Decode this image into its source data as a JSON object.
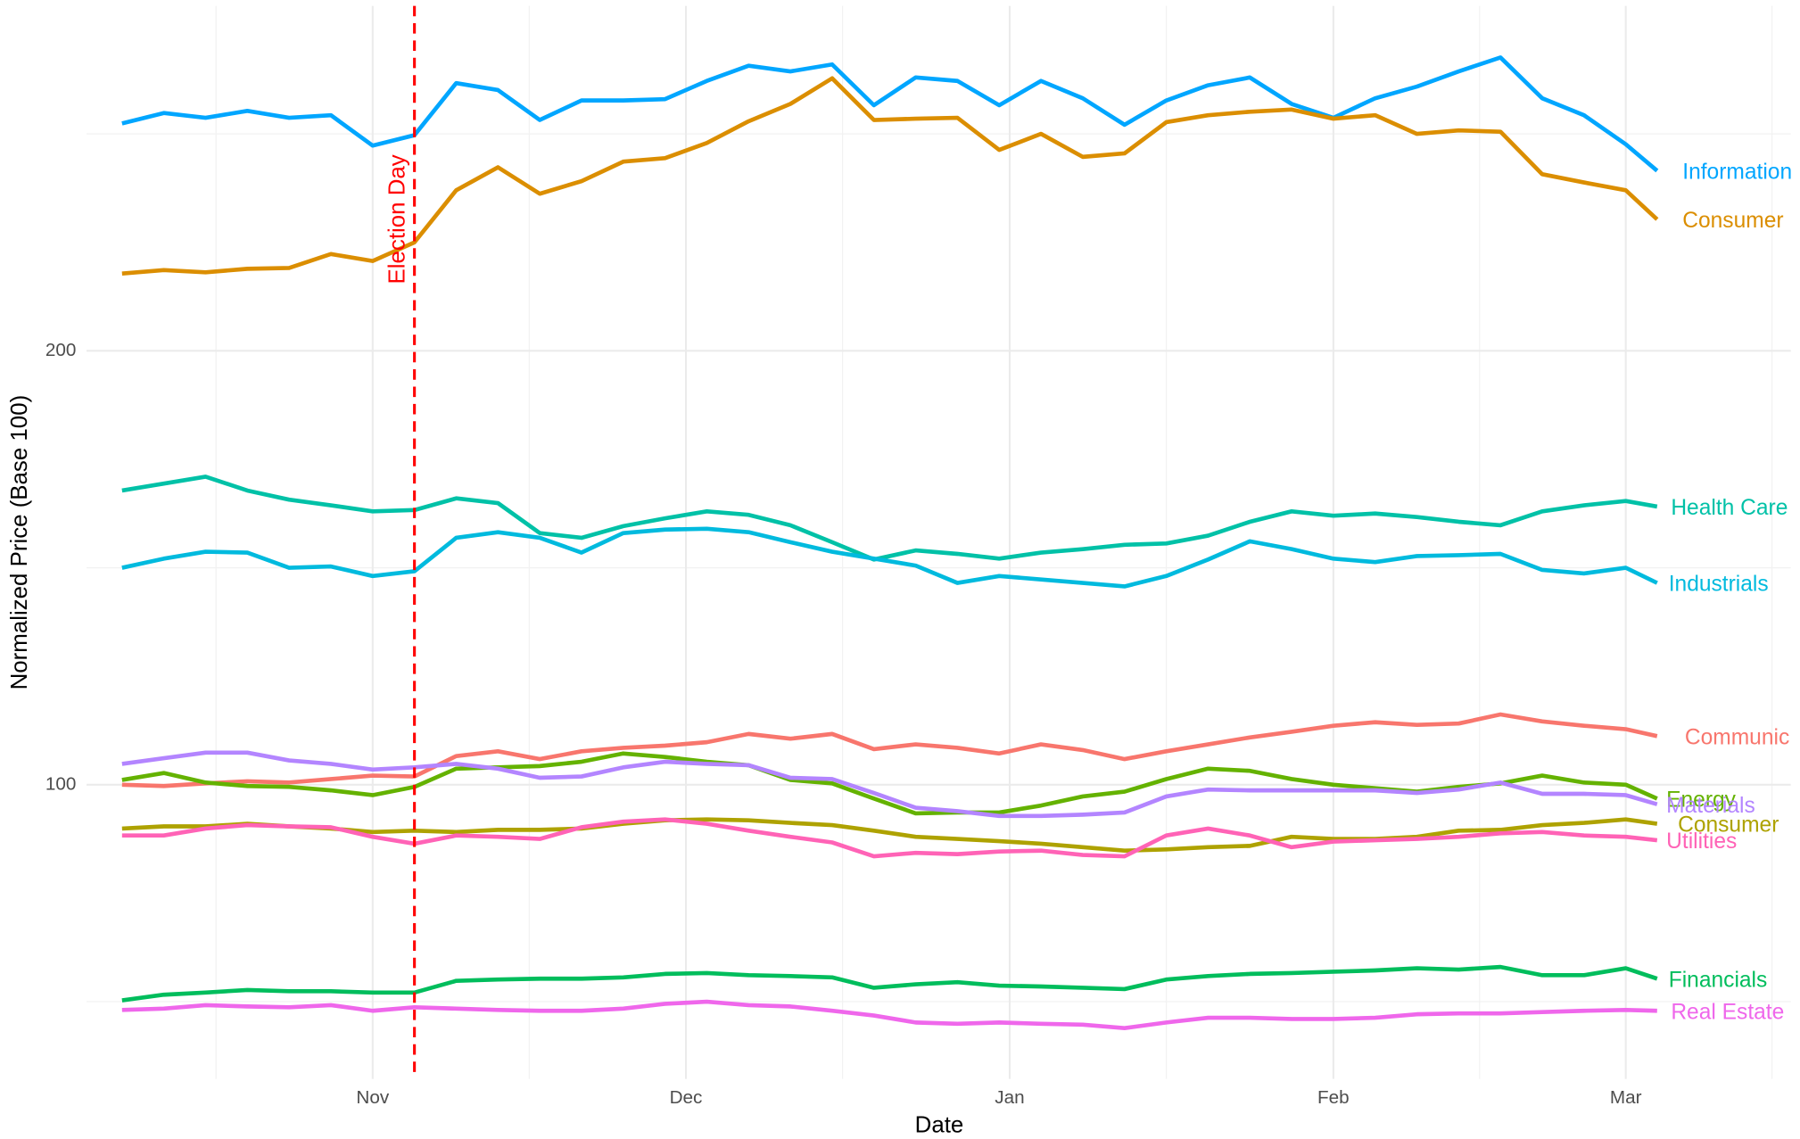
{
  "chart_data": {
    "type": "line",
    "x_label": "Date",
    "y_label": "Normalized Price (Base 100)",
    "x": [
      0,
      4,
      8,
      12,
      16,
      20,
      24,
      28,
      32,
      36,
      40,
      44,
      48,
      52,
      56,
      60,
      64,
      68,
      72,
      76,
      80,
      84,
      88,
      92,
      96,
      100,
      104,
      108,
      112,
      116,
      120,
      124,
      128,
      132,
      136,
      140,
      144,
      147
    ],
    "xlim": [
      -3.4,
      159.8
    ],
    "xticks": [
      {
        "value": 24,
        "label": "Nov"
      },
      {
        "value": 54,
        "label": "Dec"
      },
      {
        "value": 85,
        "label": "Jan"
      },
      {
        "value": 116,
        "label": "Feb"
      },
      {
        "value": 144,
        "label": "Mar"
      }
    ],
    "minor_xticks": [
      9,
      39,
      69,
      100,
      130,
      158
    ],
    "ylim": [
      32.2,
      279.5
    ],
    "yticks": [
      100,
      200
    ],
    "minor_yticks": [
      50,
      150,
      250
    ],
    "grid": true,
    "annotations": [
      {
        "x": 28,
        "label": "Election Day",
        "color": "#ff0000"
      }
    ],
    "series": [
      {
        "name": "Information",
        "color": "#00A6FF",
        "values": [
          252.4,
          254.8,
          253.7,
          255.3,
          253.7,
          254.3,
          247.3,
          249.7,
          261.7,
          260.1,
          253.2,
          257.7,
          257.7,
          258,
          262.2,
          265.7,
          264.4,
          266,
          256.6,
          263,
          262.2,
          256.6,
          262.2,
          258.2,
          252.1,
          257.7,
          261.2,
          263,
          256.9,
          253.7,
          258.2,
          260.9,
          264.4,
          267.6,
          258.2,
          254.3,
          247.6,
          241.5
        ]
      },
      {
        "name": "Consumer",
        "color": "#DB8E00",
        "values": [
          217.8,
          218.6,
          218.1,
          218.9,
          219.1,
          222.3,
          220.7,
          225,
          237,
          242.3,
          236.2,
          239.1,
          243.6,
          244.4,
          247.9,
          252.9,
          256.9,
          262.8,
          253.2,
          253.5,
          253.7,
          246.3,
          250,
          244.7,
          245.5,
          252.7,
          254.3,
          255.1,
          255.6,
          253.5,
          254.3,
          250,
          250.8,
          250.5,
          240.7,
          238.8,
          237,
          230.3
        ]
      },
      {
        "name": "Health Care",
        "color": "#00C1A7",
        "values": [
          167.8,
          169.4,
          171,
          167.8,
          165.7,
          164.4,
          163,
          163.3,
          166,
          164.9,
          158,
          156.9,
          159.6,
          161.4,
          163,
          162.2,
          159.8,
          155.9,
          151.9,
          154,
          153.2,
          152.1,
          153.5,
          154.3,
          155.3,
          155.6,
          157.4,
          160.6,
          163,
          162,
          162.5,
          161.7,
          160.6,
          159.8,
          163,
          164.4,
          165.4,
          164.1
        ]
      },
      {
        "name": "Industrials",
        "color": "#00BADE",
        "values": [
          150,
          152.1,
          153.7,
          153.5,
          150,
          150.3,
          148.1,
          149.2,
          156.9,
          158.2,
          156.9,
          153.5,
          158,
          158.8,
          159,
          158.2,
          155.9,
          153.7,
          152.1,
          150.5,
          146.5,
          148.1,
          147.3,
          146.5,
          145.7,
          148.1,
          151.9,
          156.1,
          154.3,
          152.1,
          151.3,
          152.7,
          152.9,
          153.2,
          149.5,
          148.7,
          150,
          146.5
        ]
      },
      {
        "name": "Communic",
        "color": "#F8766D",
        "values": [
          100,
          99.7,
          100.3,
          100.8,
          100.5,
          101.3,
          102.1,
          101.9,
          106.6,
          107.7,
          105.9,
          107.7,
          108.5,
          109,
          109.8,
          111.7,
          110.6,
          111.7,
          108.2,
          109.3,
          108.5,
          107.2,
          109.3,
          108,
          105.9,
          107.7,
          109.3,
          110.9,
          112.2,
          113.6,
          114.4,
          113.8,
          114.1,
          116.2,
          114.6,
          113.6,
          112.8,
          111.2
        ]
      },
      {
        "name": "Energy",
        "color": "#64B200",
        "values": [
          101.1,
          102.7,
          100.5,
          99.7,
          99.5,
          98.7,
          97.6,
          99.5,
          103.7,
          104,
          104.3,
          105.3,
          107.2,
          106.4,
          105.3,
          104.5,
          101.1,
          100.3,
          96.8,
          93.4,
          93.6,
          93.6,
          95.2,
          97.3,
          98.4,
          101.3,
          103.7,
          103.2,
          101.3,
          100,
          99.2,
          98.4,
          99.5,
          100.3,
          102.1,
          100.5,
          100,
          96.8
        ]
      },
      {
        "name": "Materials",
        "color": "#B385FF",
        "values": [
          104.8,
          106.1,
          107.4,
          107.4,
          105.6,
          104.8,
          103.5,
          104,
          104.8,
          103.7,
          101.6,
          101.9,
          104,
          105.3,
          104.8,
          104.5,
          101.6,
          101.3,
          98.1,
          94.7,
          93.9,
          92.8,
          92.8,
          93.1,
          93.6,
          97.3,
          98.9,
          98.7,
          98.7,
          98.7,
          98.7,
          98.1,
          98.9,
          100.5,
          97.9,
          97.9,
          97.6,
          95.5
        ]
      },
      {
        "name": "Consumer",
        "color": "#AEA200",
        "values": [
          89.9,
          90.4,
          90.4,
          91,
          90.4,
          89.9,
          89.1,
          89.4,
          89.1,
          89.6,
          89.6,
          89.9,
          91,
          91.8,
          92,
          91.8,
          91.2,
          90.7,
          89.4,
          88,
          87.5,
          87,
          86.4,
          85.6,
          84.8,
          85.1,
          85.6,
          85.9,
          88,
          87.5,
          87.5,
          88,
          89.4,
          89.6,
          90.7,
          91.2,
          92,
          91
        ]
      },
      {
        "name": "Utilities",
        "color": "#FF63B6",
        "values": [
          88.3,
          88.3,
          89.9,
          90.7,
          90.4,
          90.2,
          88,
          86.4,
          88.3,
          88,
          87.5,
          90.2,
          91.5,
          92,
          91,
          89.4,
          88,
          86.7,
          83.5,
          84.3,
          84,
          84.6,
          84.8,
          83.8,
          83.5,
          88.3,
          89.9,
          88.3,
          85.6,
          86.9,
          87.2,
          87.5,
          88,
          88.8,
          89.1,
          88.3,
          88,
          87.2
        ]
      },
      {
        "name": "Financials",
        "color": "#00BD5C",
        "values": [
          50.3,
          51.6,
          52.1,
          52.7,
          52.4,
          52.4,
          52.1,
          52.1,
          54.8,
          55.1,
          55.3,
          55.3,
          55.6,
          56.4,
          56.6,
          56.1,
          55.9,
          55.6,
          53.2,
          54,
          54.5,
          53.7,
          53.5,
          53.2,
          52.9,
          55.1,
          55.9,
          56.4,
          56.6,
          56.9,
          57.2,
          57.7,
          57.4,
          58,
          56.1,
          56.1,
          57.7,
          55.3
        ]
      },
      {
        "name": "Real Estate",
        "color": "#EF67EB",
        "values": [
          48.1,
          48.4,
          49.2,
          48.9,
          48.7,
          49.2,
          47.9,
          48.7,
          48.4,
          48.1,
          47.9,
          47.9,
          48.4,
          49.5,
          50,
          49.2,
          48.9,
          47.9,
          46.8,
          45.2,
          44.9,
          45.2,
          44.9,
          44.7,
          43.9,
          45.2,
          46.3,
          46.3,
          46,
          46,
          46.3,
          47.1,
          47.3,
          47.3,
          47.6,
          47.9,
          48.1,
          47.9
        ]
      }
    ]
  }
}
